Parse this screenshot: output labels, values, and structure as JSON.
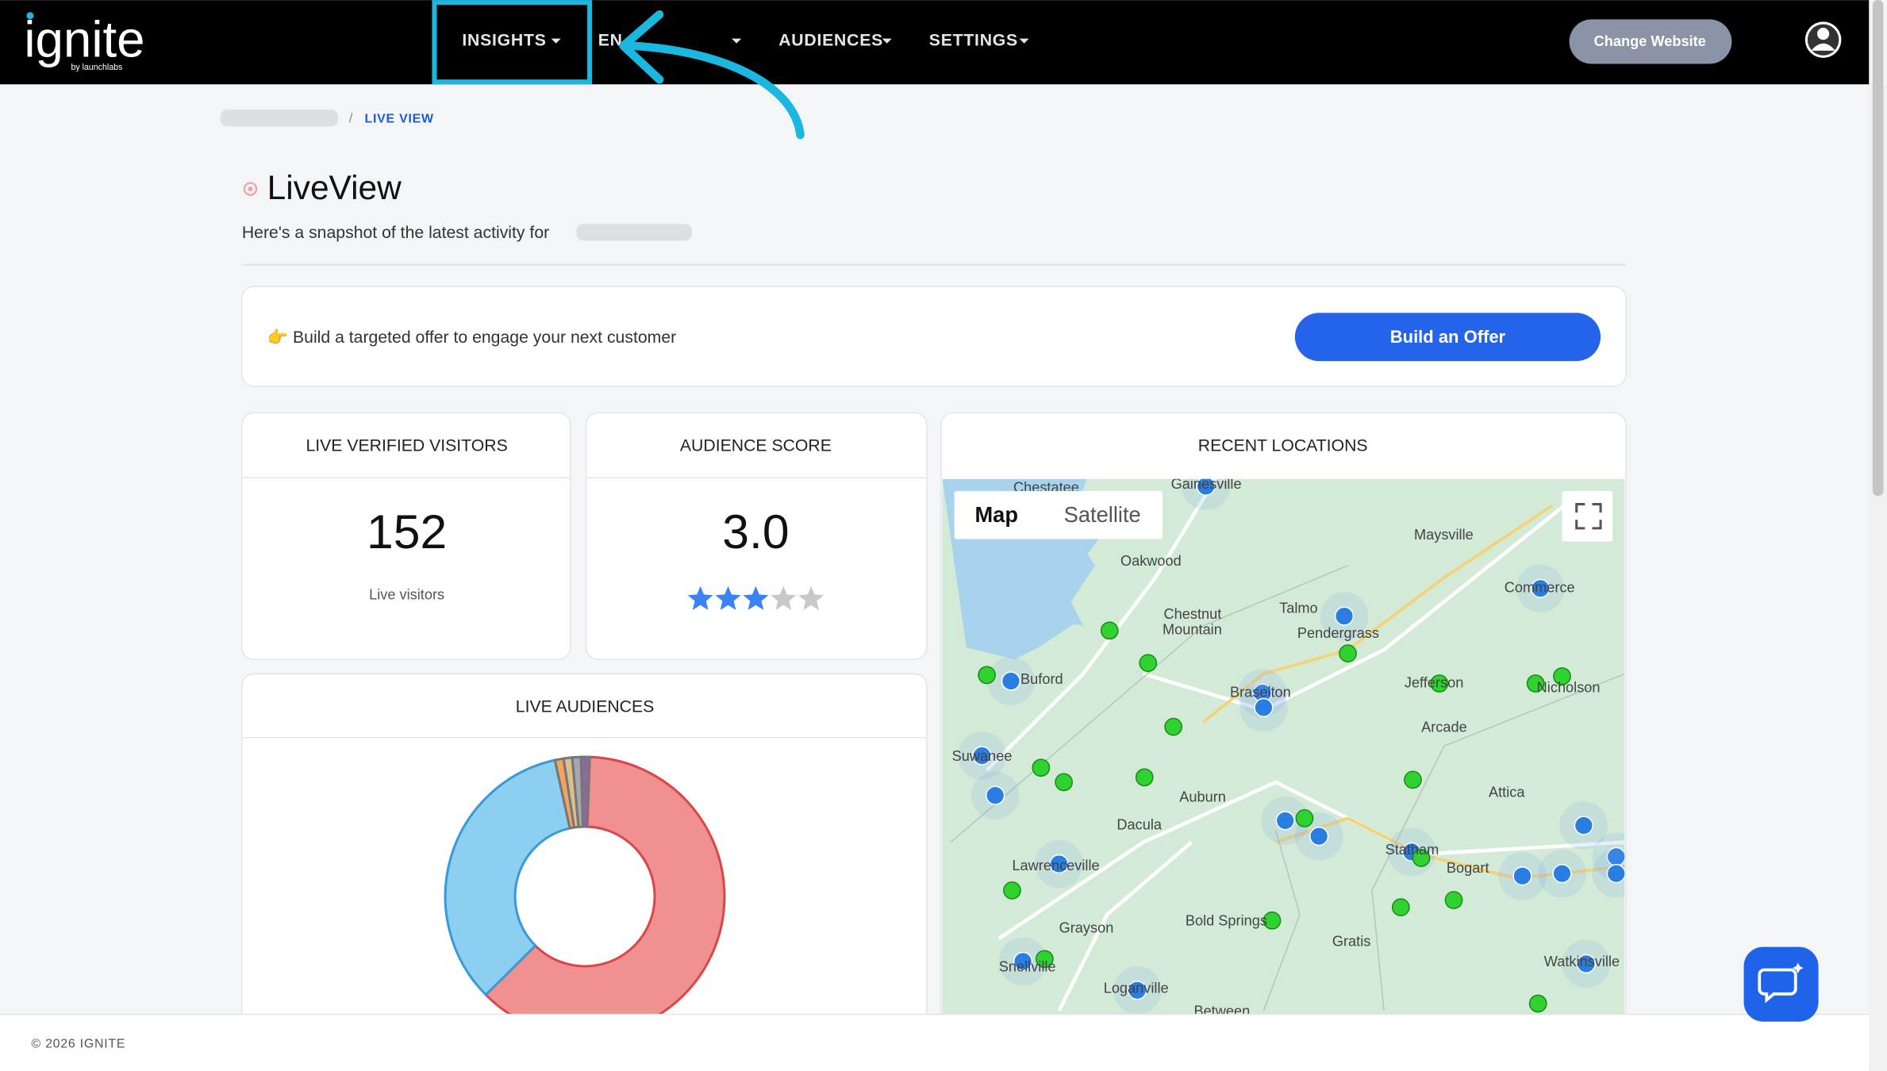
{
  "header": {
    "logo": "ignite",
    "logo_sub": "by launchlabs",
    "nav": [
      "INSIGHTS",
      "EN",
      "AUDIENCES",
      "SETTINGS"
    ],
    "change_website": "Change Website"
  },
  "breadcrumb": {
    "separator": "/",
    "current": "LIVE VIEW"
  },
  "page": {
    "title": "LiveView",
    "subtitle": "Here's a snapshot of the latest activity for"
  },
  "offer": {
    "text": "👉 Build a targeted offer to engage your next customer",
    "button": "Build an Offer"
  },
  "cards": {
    "visitors": {
      "title": "LIVE VERIFIED VISITORS",
      "value": "152",
      "caption": "Live visitors"
    },
    "score": {
      "title": "AUDIENCE SCORE",
      "value": "3.0",
      "stars": 3,
      "stars_total": 5
    },
    "locations": {
      "title": "RECENT LOCATIONS",
      "map_button": "Map",
      "satellite_button": "Satellite",
      "places": [
        "Chestatee",
        "Gainesville",
        "Oakwood",
        "Maysville",
        "Commerce",
        "Chestnut",
        "Mountain",
        "Talmo",
        "Pendergrass",
        "Buford",
        "Braselton",
        "Jefferson",
        "Nicholson",
        "Arcade",
        "Suwanee",
        "Auburn",
        "Attica",
        "Dacula",
        "Lawrenceville",
        "Statham",
        "Bogart",
        "Grayson",
        "Bold Springs",
        "Gratis",
        "Snellville",
        "Loganville",
        "Watkinsville",
        "Between"
      ]
    },
    "audiences": {
      "title": "LIVE AUDIENCES",
      "segments": [
        {
          "color": "#f09090",
          "values": 62
        },
        {
          "color": "#8ccff0",
          "values": 34
        },
        {
          "color": "#f4a460",
          "values": 1
        },
        {
          "color": "#d9c08c",
          "values": 1
        },
        {
          "color": "#a7a7ad",
          "values": 1
        },
        {
          "color": "#8a6aa0",
          "values": 1
        }
      ]
    }
  },
  "footer": {
    "text": "© 2026 IGNITE"
  }
}
